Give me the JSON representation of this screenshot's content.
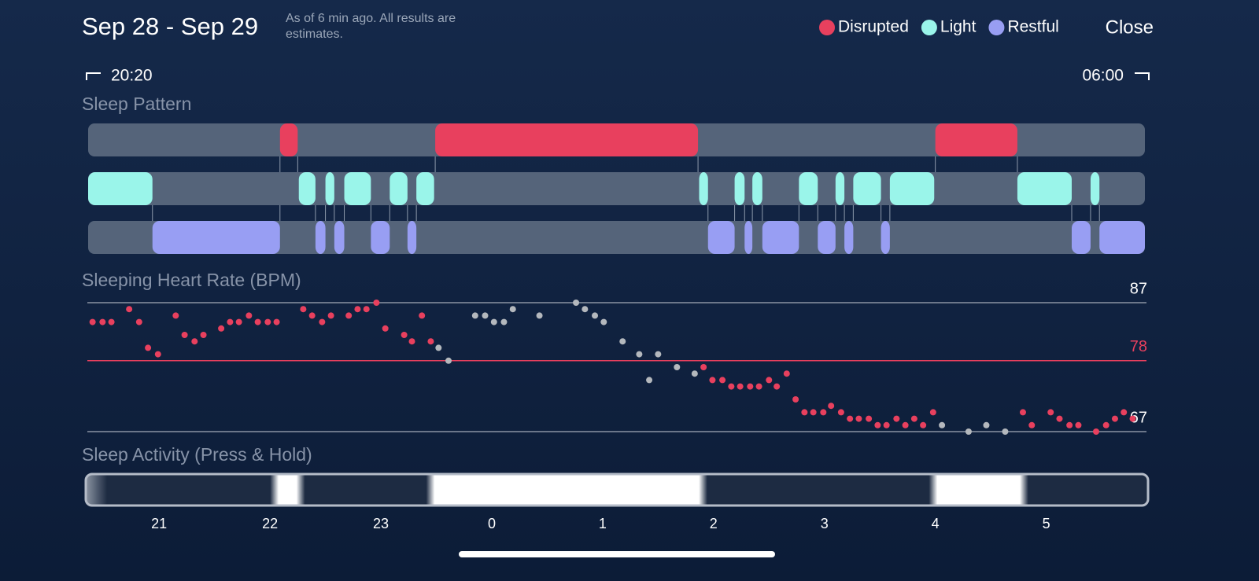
{
  "header": {
    "title": "Sep 28 - Sep 29",
    "note": "As of 6 min ago. All results are estimates.",
    "close": "Close"
  },
  "chart_data": {
    "type": "timeline",
    "start_label": "20:20",
    "end_label": "06:00",
    "xlim": [
      20.36,
      29.89
    ],
    "xticks": [
      21,
      22,
      23,
      {
        "value": 24,
        "label": "0"
      },
      {
        "value": 25,
        "label": "1"
      },
      {
        "value": 26,
        "label": "2"
      },
      {
        "value": 27,
        "label": "3"
      },
      {
        "value": 28,
        "label": "4"
      },
      {
        "value": 29,
        "label": "5"
      }
    ],
    "pattern": {
      "title": "Sleep Pattern",
      "stages": [
        {
          "name": "Disrupted",
          "color": "#e8405e",
          "segments": [
            [
              22.09,
              22.25
            ],
            [
              23.49,
              25.86
            ],
            [
              28.0,
              28.74
            ]
          ]
        },
        {
          "name": "Light",
          "color": "#9af5ea",
          "segments": [
            [
              20.36,
              20.94
            ],
            [
              22.26,
              22.41
            ],
            [
              22.5,
              22.58
            ],
            [
              22.67,
              22.91
            ],
            [
              23.08,
              23.24
            ],
            [
              23.32,
              23.48
            ],
            [
              25.87,
              25.95
            ],
            [
              26.19,
              26.28
            ],
            [
              26.35,
              26.44
            ],
            [
              26.77,
              26.94
            ],
            [
              27.1,
              27.18
            ],
            [
              27.26,
              27.51
            ],
            [
              27.59,
              27.99
            ],
            [
              28.74,
              29.23
            ],
            [
              29.4,
              29.48
            ]
          ]
        },
        {
          "name": "Restful",
          "color": "#989ef3",
          "segments": [
            [
              20.94,
              22.09
            ],
            [
              22.41,
              22.5
            ],
            [
              22.58,
              22.67
            ],
            [
              22.91,
              23.08
            ],
            [
              23.24,
              23.32
            ],
            [
              25.95,
              26.19
            ],
            [
              26.28,
              26.35
            ],
            [
              26.44,
              26.77
            ],
            [
              26.94,
              27.1
            ],
            [
              27.18,
              27.26
            ],
            [
              27.51,
              27.59
            ],
            [
              29.23,
              29.4
            ],
            [
              29.48,
              29.89
            ]
          ]
        }
      ]
    },
    "heart_rate": {
      "title": "Sleeping Heart Rate (BPM)",
      "ylim": [
        66,
        88
      ],
      "yticks": [
        67,
        87
      ],
      "average": 78,
      "average_color": "#e8405e",
      "series": [
        {
          "color": "#e8405e",
          "x": [
            20.4,
            20.49,
            20.57,
            20.73,
            20.82,
            20.9,
            20.99,
            21.15,
            21.23,
            21.32,
            21.4,
            21.56,
            21.64,
            21.72,
            21.81,
            21.89,
            21.98,
            22.06,
            22.3,
            22.38,
            22.47,
            22.55,
            22.71,
            22.79,
            22.87,
            22.96,
            23.04,
            23.21,
            23.28,
            23.37,
            23.45,
            25.91,
            25.99,
            26.08,
            26.16,
            26.24,
            26.33,
            26.41,
            26.5,
            26.57,
            26.66,
            26.74,
            26.82,
            26.9,
            26.99,
            27.06,
            27.15,
            27.23,
            27.31,
            27.4,
            27.48,
            27.56,
            27.65,
            27.73,
            27.81,
            27.89,
            27.98,
            28.79,
            28.87,
            29.04,
            29.12,
            29.21,
            29.29,
            29.45,
            29.54,
            29.62,
            29.7,
            29.78
          ],
          "values": [
            84,
            84,
            84,
            86,
            84,
            80,
            79,
            85,
            82,
            81,
            82,
            83,
            84,
            84,
            85,
            84,
            84,
            84,
            86,
            85,
            84,
            85,
            85,
            86,
            86,
            87,
            83,
            82,
            81,
            85,
            81,
            77,
            75,
            75,
            74,
            74,
            74,
            74,
            75,
            74,
            76,
            72,
            70,
            70,
            70,
            71,
            70,
            69,
            69,
            69,
            68,
            68,
            69,
            68,
            69,
            68,
            70,
            70,
            68,
            70,
            69,
            68,
            68,
            67,
            68,
            69,
            70,
            69
          ]
        },
        {
          "color": "#b4b8bd",
          "x": [
            23.52,
            23.61,
            23.85,
            23.94,
            24.02,
            24.11,
            24.19,
            24.43,
            24.76,
            24.84,
            24.93,
            25.01,
            25.18,
            25.33,
            25.42,
            25.5,
            25.67,
            25.83,
            28.06,
            28.3,
            28.46,
            28.63
          ],
          "values": [
            80,
            78,
            85,
            85,
            84,
            84,
            86,
            85,
            87,
            86,
            85,
            84,
            81,
            79,
            75,
            79,
            77,
            76,
            68,
            67,
            68,
            67
          ]
        }
      ]
    },
    "activity": {
      "title": "Sleep Activity (Press & Hold)"
    }
  }
}
